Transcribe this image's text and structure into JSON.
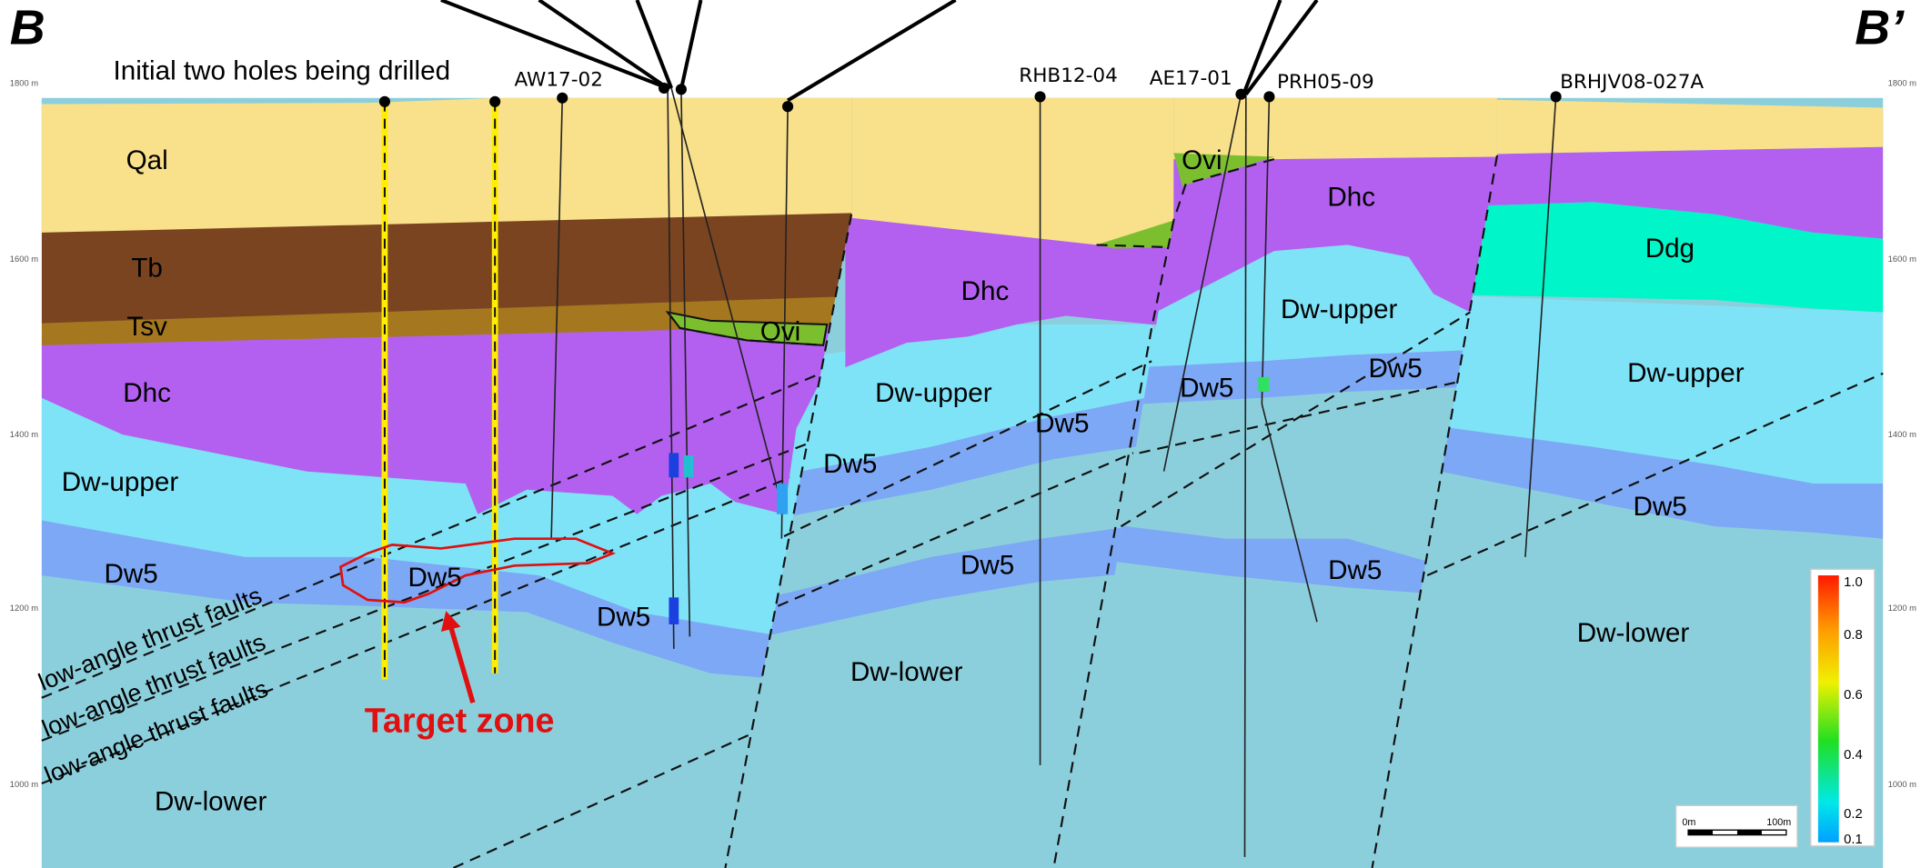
{
  "section_labels": {
    "left": "B",
    "right": "B’"
  },
  "annotation": "Initial two holes being drilled",
  "target_label": "Target zone",
  "holes": [
    "AW17-02",
    "RHB12-04",
    "AE17-01",
    "PRH05-09",
    "BRHJV08-027A"
  ],
  "units": [
    "Qal",
    "Tb",
    "Tsv",
    "Dhc",
    "Dw-upper",
    "Dw5",
    "Dw-lower",
    "Dw5",
    "Dw5",
    "Ovi",
    "Dhc",
    "Dw-upper",
    "Dw5",
    "Dw5",
    "Dw5",
    "Dw-lower",
    "Ovi",
    "Dhc",
    "Dw-upper",
    "Dw5",
    "Dw5",
    "Dw5",
    "Ddg",
    "Dw-upper",
    "Dw5",
    "Dw-lower"
  ],
  "faults": [
    "low-angle thrust faults",
    "low-angle thrust faults",
    "low-angle thrust faults"
  ],
  "elevations": [
    "1800 m",
    "1600 m",
    "1400 m",
    "1200 m",
    "1000 m"
  ],
  "colorbar": [
    "1.0",
    "0.8",
    "0.6",
    "0.4",
    "0.2",
    "0.1"
  ],
  "scale_bar": [
    "0m",
    "100m"
  ]
}
